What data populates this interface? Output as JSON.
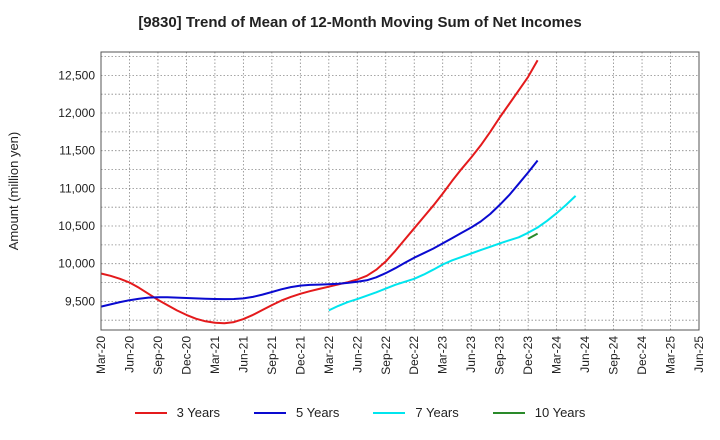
{
  "chart_data": {
    "type": "line",
    "title": "[9830]  Trend of Mean of 12-Month Moving Sum of Net Incomes",
    "xlabel": "",
    "ylabel": "Amount (million yen)",
    "x_tick_labels": [
      "Mar-20",
      "Jun-20",
      "Sep-20",
      "Dec-20",
      "Mar-21",
      "Jun-21",
      "Sep-21",
      "Dec-21",
      "Mar-22",
      "Jun-22",
      "Sep-22",
      "Dec-22",
      "Mar-23",
      "Jun-23",
      "Sep-23",
      "Dec-23",
      "Mar-24",
      "Jun-24",
      "Sep-24",
      "Dec-24",
      "Mar-25",
      "Jun-25"
    ],
    "y_ticks": [
      9500,
      10000,
      10500,
      11000,
      11500,
      12000,
      12500
    ],
    "y_tick_labels": [
      "9,500",
      "10,000",
      "10,500",
      "11,000",
      "11,500",
      "12,000",
      "12,500"
    ],
    "ylim": [
      9120,
      12810
    ],
    "grid": true,
    "legend_position": "bottom",
    "series": [
      {
        "name": "3 Years",
        "color": "#e41a1c",
        "start_index": 0,
        "values": [
          9870,
          9840,
          9800,
          9750,
          9680,
          9600,
          9520,
          9450,
          9380,
          9320,
          9270,
          9235,
          9215,
          9210,
          9225,
          9265,
          9320,
          9385,
          9450,
          9510,
          9560,
          9600,
          9635,
          9665,
          9695,
          9725,
          9755,
          9790,
          9840,
          9920,
          10030,
          10170,
          10320,
          10470,
          10620,
          10770,
          10930,
          11100,
          11260,
          11410,
          11570,
          11750,
          11940,
          12120,
          12300,
          12480,
          12700
        ]
      },
      {
        "name": "5 Years",
        "color": "#0a0ad0",
        "start_index": 0,
        "values": [
          9430,
          9460,
          9490,
          9515,
          9535,
          9550,
          9555,
          9555,
          9550,
          9545,
          9540,
          9535,
          9532,
          9530,
          9532,
          9540,
          9560,
          9590,
          9625,
          9660,
          9690,
          9710,
          9718,
          9722,
          9728,
          9735,
          9745,
          9760,
          9780,
          9820,
          9875,
          9940,
          10010,
          10080,
          10140,
          10200,
          10270,
          10340,
          10410,
          10480,
          10560,
          10660,
          10780,
          10910,
          11060,
          11210,
          11370
        ]
      },
      {
        "name": "7 Years",
        "color": "#00e5ee",
        "start_index": 24,
        "values": [
          9380,
          9440,
          9490,
          9530,
          9575,
          9620,
          9670,
          9720,
          9760,
          9800,
          9855,
          9920,
          9990,
          10045,
          10090,
          10135,
          10180,
          10225,
          10270,
          10310,
          10350,
          10410,
          10480,
          10570,
          10670,
          10780,
          10900
        ]
      },
      {
        "name": "10 Years",
        "color": "#2a8a2a",
        "start_index": 45,
        "values": [
          10330,
          10400
        ]
      }
    ]
  }
}
